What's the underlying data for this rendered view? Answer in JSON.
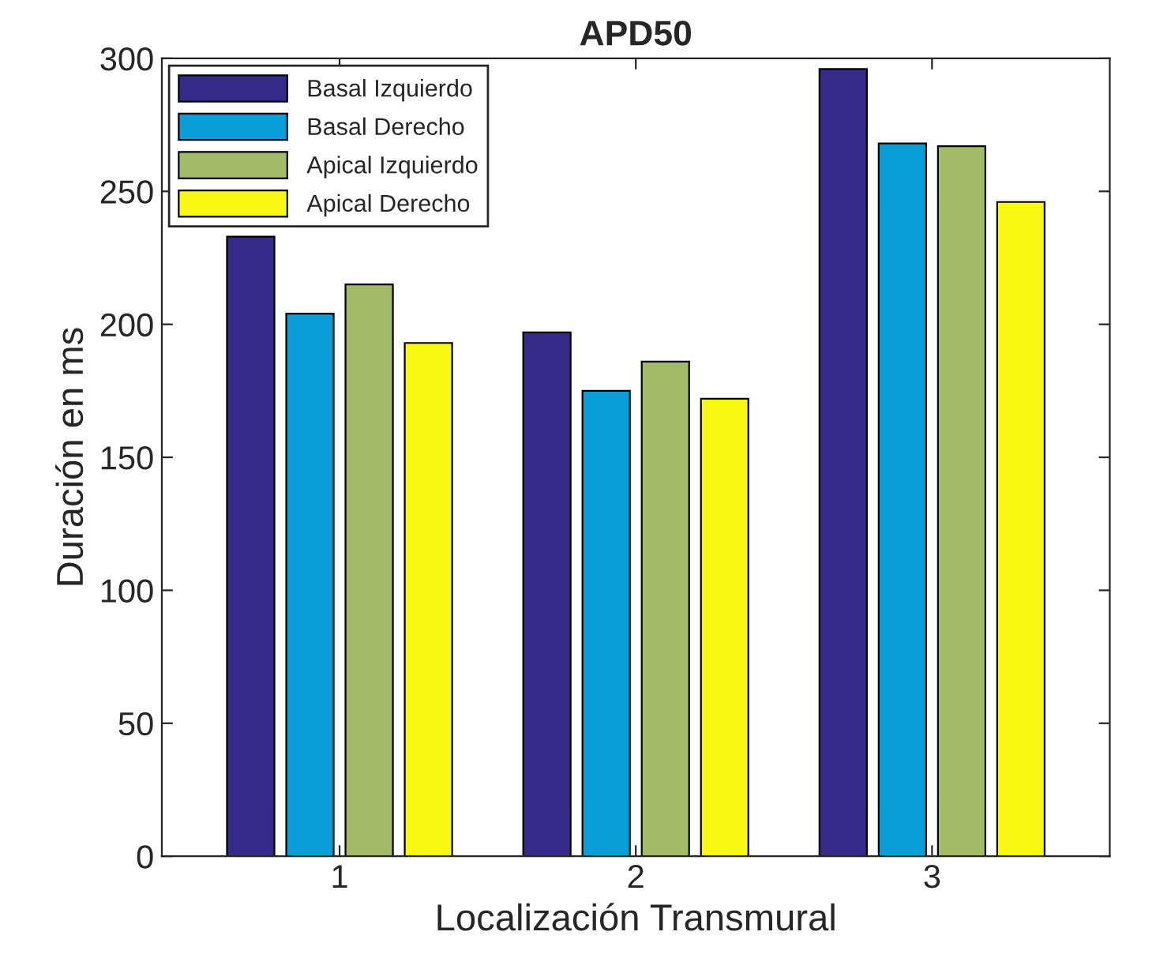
{
  "chart_data": {
    "type": "bar",
    "title": "APD50",
    "xlabel": "Localización Transmural",
    "ylabel": "Duración en ms",
    "categories": [
      "1",
      "2",
      "3"
    ],
    "series": [
      {
        "name": "Basal Izquierdo",
        "color": "#352a87",
        "values": [
          233,
          197,
          296
        ]
      },
      {
        "name": "Basal Derecho",
        "color": "#0a9ed8",
        "values": [
          204,
          175,
          268
        ]
      },
      {
        "name": "Apical Izquierdo",
        "color": "#a2bb68",
        "values": [
          215,
          186,
          267
        ]
      },
      {
        "name": "Apical Derecho",
        "color": "#f8f812",
        "values": [
          193,
          172,
          246
        ]
      }
    ],
    "ylim": [
      0,
      300
    ],
    "yticks": [
      0,
      50,
      100,
      150,
      200,
      250,
      300
    ],
    "grid": false,
    "legend": "top left"
  }
}
